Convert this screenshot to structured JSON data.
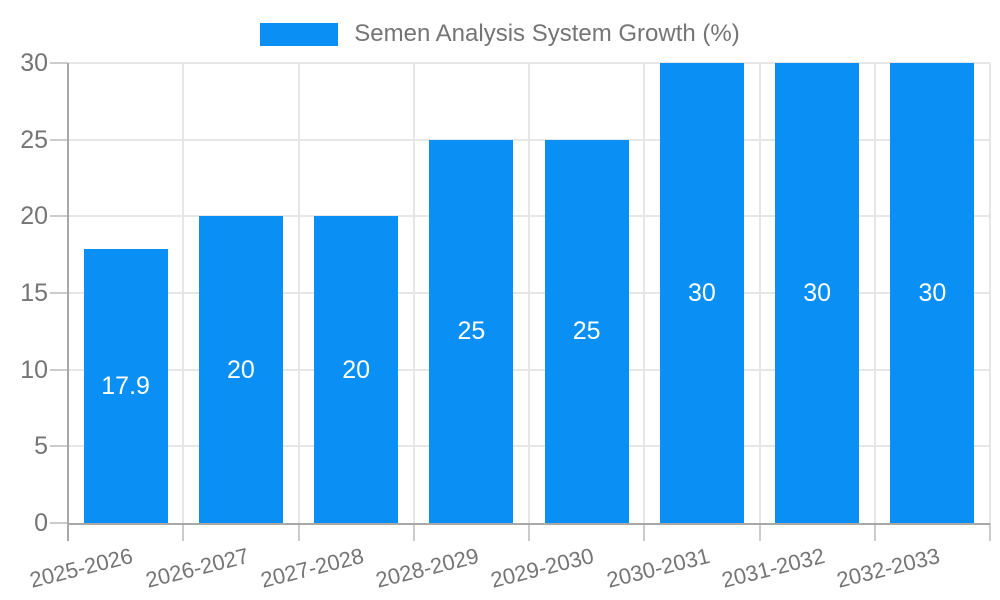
{
  "legend": {
    "label": "Semen Analysis System Growth (%)"
  },
  "chart_data": {
    "type": "bar",
    "title": "Semen Analysis System Growth (%)",
    "categories": [
      "2025-2026",
      "2026-2027",
      "2027-2028",
      "2028-2029",
      "2029-2030",
      "2030-2031",
      "2031-2032",
      "2032-2033"
    ],
    "values": [
      17.9,
      20,
      20,
      25,
      25,
      30,
      30,
      30
    ],
    "xlabel": "",
    "ylabel": "",
    "ylim": [
      0,
      30
    ],
    "yticks": [
      0,
      5,
      10,
      15,
      20,
      25,
      30
    ],
    "grid": true,
    "legend_position": "top-center",
    "bar_labels_inside": true
  },
  "colors": {
    "accent": "#0a90f5",
    "grid": "#e6e6e6",
    "axis": "#a8a8a8",
    "tick": "#cccccc",
    "text": "#757575",
    "bar_label": "#ffffff",
    "background": "#ffffff"
  }
}
